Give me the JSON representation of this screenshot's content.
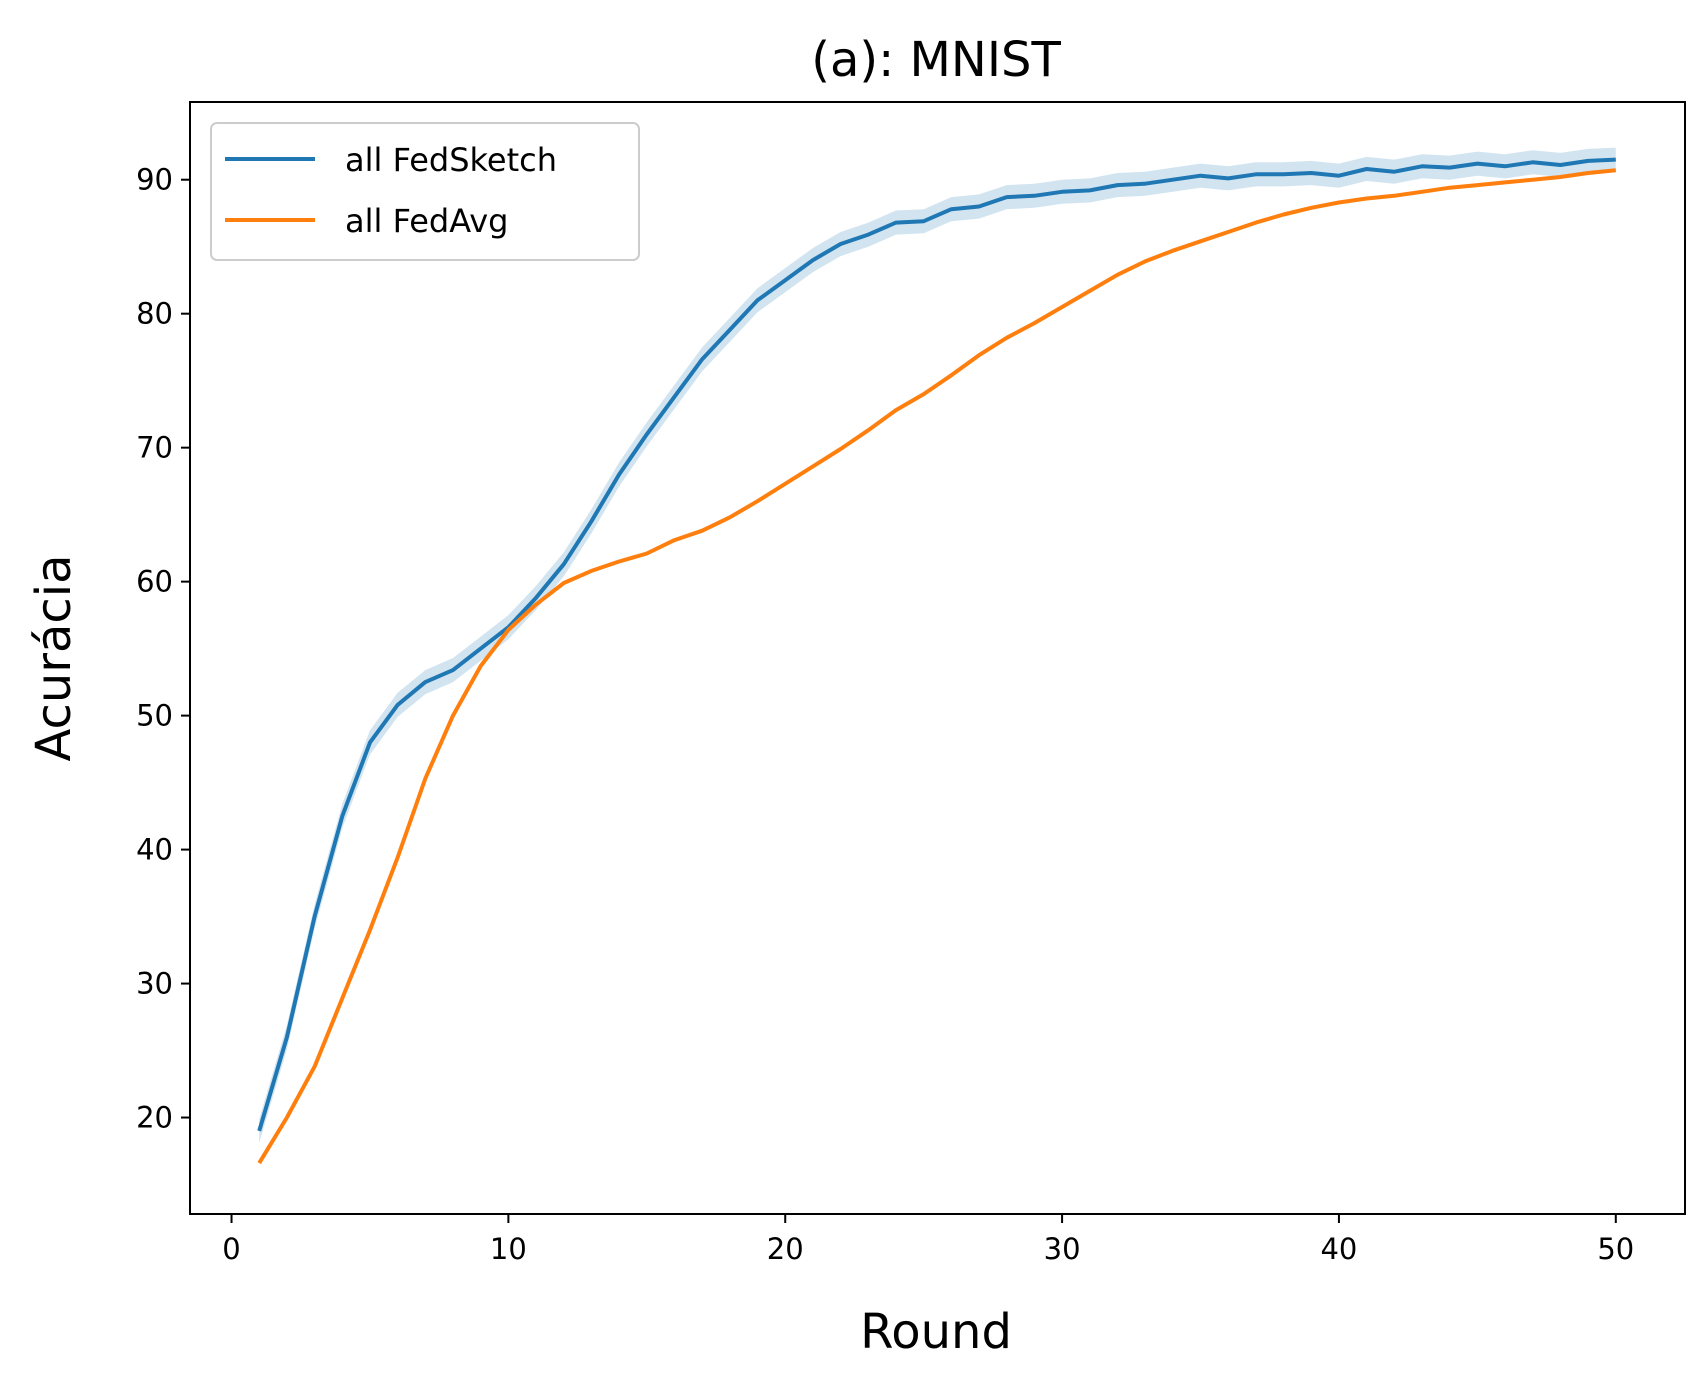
{
  "chart_data": {
    "type": "line",
    "title": "(a): MNIST",
    "xlabel": "Round",
    "ylabel": "Acurácia",
    "xlim": [
      -1.5,
      52.5
    ],
    "ylim": [
      12.8,
      95.8
    ],
    "xticks": [
      0,
      10,
      20,
      30,
      40,
      50
    ],
    "yticks": [
      20,
      30,
      40,
      50,
      60,
      70,
      80,
      90
    ],
    "grid": false,
    "legend_position": "upper left",
    "x": [
      1,
      2,
      3,
      4,
      5,
      6,
      7,
      8,
      9,
      10,
      11,
      12,
      13,
      14,
      15,
      16,
      17,
      18,
      19,
      20,
      21,
      22,
      23,
      24,
      25,
      26,
      27,
      28,
      29,
      30,
      31,
      32,
      33,
      34,
      35,
      36,
      37,
      38,
      39,
      40,
      41,
      42,
      43,
      44,
      45,
      46,
      47,
      48,
      49,
      50
    ],
    "series": [
      {
        "name": "all FedSketch",
        "color": "#1f77b4",
        "band": 0.9,
        "values": [
          19.0,
          26.0,
          35.0,
          42.5,
          48.0,
          50.8,
          52.5,
          53.4,
          55.0,
          56.6,
          58.8,
          61.3,
          64.5,
          68.0,
          71.0,
          73.8,
          76.6,
          78.8,
          81.0,
          82.5,
          84.0,
          85.2,
          85.9,
          86.8,
          86.9,
          87.8,
          88.0,
          88.7,
          88.8,
          89.1,
          89.2,
          89.6,
          89.7,
          90.0,
          90.3,
          90.1,
          90.4,
          90.4,
          90.5,
          90.3,
          90.8,
          90.6,
          91.0,
          90.9,
          91.2,
          91.0,
          91.3,
          91.1,
          91.4,
          91.5
        ]
      },
      {
        "name": "all FedAvg",
        "color": "#ff7f0e",
        "band": 0,
        "values": [
          16.6,
          20.0,
          23.8,
          28.9,
          34.0,
          39.4,
          45.3,
          50.0,
          53.7,
          56.4,
          58.3,
          59.9,
          60.8,
          61.5,
          62.1,
          63.1,
          63.8,
          64.8,
          66.0,
          67.3,
          68.6,
          69.9,
          71.3,
          72.8,
          74.0,
          75.4,
          76.9,
          78.2,
          79.3,
          80.5,
          81.7,
          82.9,
          83.9,
          84.7,
          85.4,
          86.1,
          86.8,
          87.4,
          87.9,
          88.3,
          88.6,
          88.8,
          89.1,
          89.4,
          89.6,
          89.8,
          90.0,
          90.2,
          90.5,
          90.7
        ]
      }
    ]
  }
}
